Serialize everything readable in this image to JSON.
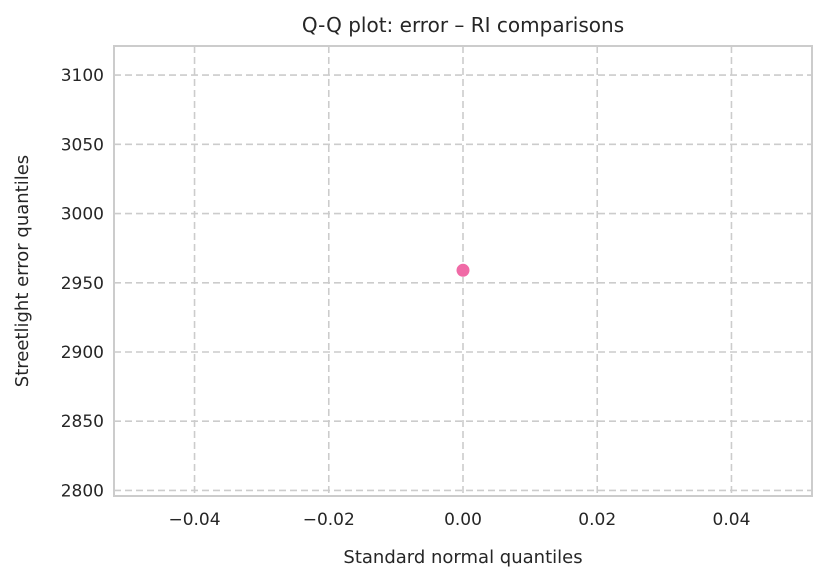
{
  "chart_data": {
    "type": "scatter",
    "title": "Q-Q plot: error – RI comparisons",
    "xlabel": "Standard normal quantiles",
    "ylabel": "Streetlight error quantiles",
    "xlim": [
      -0.052,
      0.052
    ],
    "ylim": [
      2796,
      3121
    ],
    "xticks": [
      -0.04,
      -0.02,
      0.0,
      0.02,
      0.04
    ],
    "xtick_labels": [
      "−0.04",
      "−0.02",
      "0.00",
      "0.02",
      "0.04"
    ],
    "yticks": [
      2800,
      2850,
      2900,
      2950,
      3000,
      3050,
      3100
    ],
    "ytick_labels": [
      "2800",
      "2850",
      "2900",
      "2950",
      "3000",
      "3050",
      "3100"
    ],
    "grid": true,
    "series": [
      {
        "points": [
          {
            "x": 0.0,
            "y": 2959
          }
        ],
        "color": "#f06aa6"
      }
    ]
  }
}
